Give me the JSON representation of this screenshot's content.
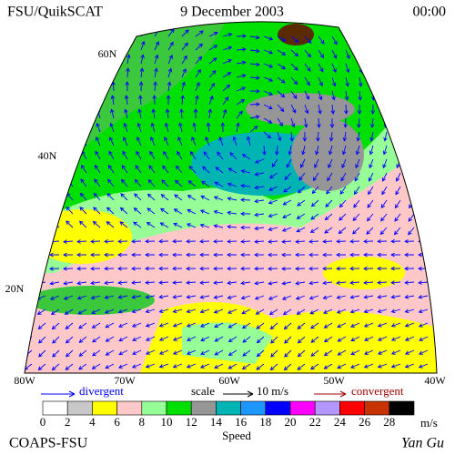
{
  "header": {
    "title": "FSU/QuikSCAT",
    "date": "9 December 2003",
    "time": "00:00"
  },
  "map": {
    "lat_labels": [
      "60N",
      "40N",
      "20N"
    ],
    "lon_labels": [
      "80W",
      "70W",
      "60W",
      "50W",
      "40W"
    ]
  },
  "legend": {
    "divergent": "divergent",
    "scale": "scale",
    "scale_value": "10 m/s",
    "convergent": "convergent",
    "speed_label": "Speed",
    "unit": "m/s",
    "colorbar": {
      "ticks": [
        0,
        2,
        4,
        6,
        8,
        10,
        12,
        14,
        16,
        18,
        20,
        22,
        24,
        26,
        28
      ],
      "colors": [
        "#ffffff",
        "#c8c8c8",
        "#ffff00",
        "#ffc8c8",
        "#96ff96",
        "#00e000",
        "#969696",
        "#00b4b4",
        "#1e96ff",
        "#0000ff",
        "#ff00ff",
        "#b496ff",
        "#ff0000",
        "#c83200",
        "#000000"
      ]
    }
  },
  "footer": {
    "left": "COAPS-FSU",
    "right": "Yan Gu"
  }
}
